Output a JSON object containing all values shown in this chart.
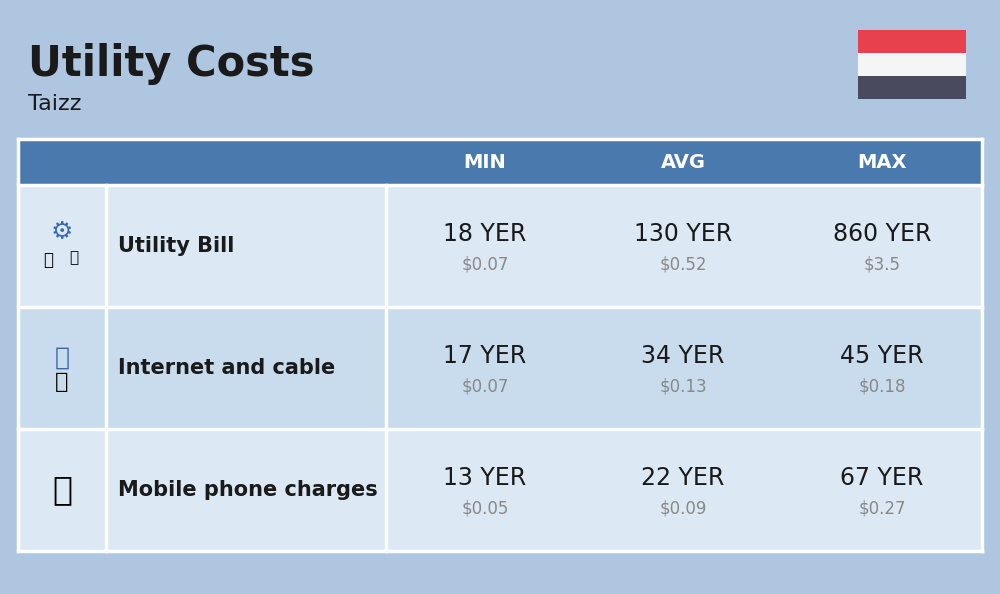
{
  "title": "Utility Costs",
  "subtitle": "Taizz",
  "bg_color": "#aec6e0",
  "header_color": "#4a7aad",
  "header_text_color": "#ffffff",
  "row_colors": [
    "#dce9f5",
    "#c9dcee"
  ],
  "col_headers": [
    "MIN",
    "AVG",
    "MAX"
  ],
  "rows": [
    {
      "label": "Utility Bill",
      "min_yer": "18 YER",
      "min_usd": "$0.07",
      "avg_yer": "130 YER",
      "avg_usd": "$0.52",
      "max_yer": "860 YER",
      "max_usd": "$3.5"
    },
    {
      "label": "Internet and cable",
      "min_yer": "17 YER",
      "min_usd": "$0.07",
      "avg_yer": "34 YER",
      "avg_usd": "$0.13",
      "max_yer": "45 YER",
      "max_usd": "$0.18"
    },
    {
      "label": "Mobile phone charges",
      "min_yer": "13 YER",
      "min_usd": "$0.05",
      "avg_yer": "22 YER",
      "avg_usd": "$0.09",
      "max_yer": "67 YER",
      "max_usd": "$0.27"
    }
  ],
  "flag_red": "#e8414e",
  "flag_white": "#f5f5f5",
  "flag_dark": "#4a4a5e",
  "yer_fontsize": 17,
  "usd_fontsize": 12,
  "label_fontsize": 15,
  "header_fontsize": 14,
  "title_fontsize": 30,
  "subtitle_fontsize": 16
}
